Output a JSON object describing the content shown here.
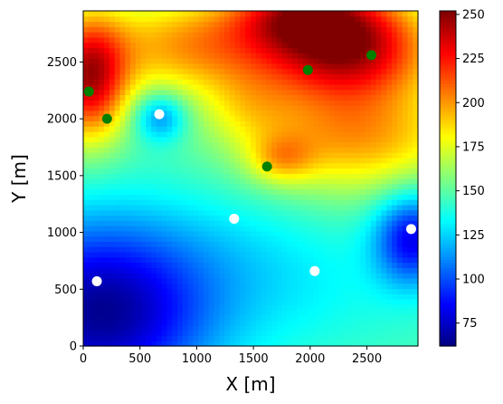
{
  "chart_data": {
    "type": "heatmap",
    "xlabel": "X [m]",
    "ylabel": "Y [m]",
    "xlim": [
      0,
      2950
    ],
    "ylim": [
      0,
      2950
    ],
    "x_ticks": [
      0,
      500,
      1000,
      1500,
      2000,
      2500
    ],
    "x_tick_labels": [
      "0",
      "500",
      "1000",
      "1500",
      "2000",
      "2500"
    ],
    "y_ticks": [
      0,
      500,
      1000,
      1500,
      2000,
      2500
    ],
    "y_tick_labels": [
      "0",
      "500",
      "1000",
      "1500",
      "2000",
      "2500"
    ],
    "colorbar": {
      "colormap": "jet",
      "range": [
        62,
        252
      ],
      "ticks": [
        75,
        100,
        125,
        150,
        175,
        200,
        225,
        250
      ],
      "tick_labels": [
        "75",
        "100",
        "125",
        "150",
        "175",
        "200",
        "225",
        "250"
      ]
    },
    "field": {
      "base_value": 148,
      "features": [
        {
          "x": 2350,
          "y": 2650,
          "sx": 520,
          "sy": 330,
          "amplitude": 92
        },
        {
          "x": 1900,
          "y": 2950,
          "sx": 420,
          "sy": 220,
          "amplitude": 55
        },
        {
          "x": 50,
          "y": 2350,
          "sx": 240,
          "sy": 380,
          "amplitude": 88
        },
        {
          "x": 1000,
          "y": 2650,
          "sx": 650,
          "sy": 300,
          "amplitude": 52
        },
        {
          "x": 2400,
          "y": 1850,
          "sx": 650,
          "sy": 350,
          "amplitude": 50
        },
        {
          "x": 1750,
          "y": 1650,
          "sx": 200,
          "sy": 150,
          "amplitude": 30
        },
        {
          "x": 1450,
          "y": 2100,
          "sx": 300,
          "sy": 250,
          "amplitude": 20
        },
        {
          "x": 680,
          "y": 2020,
          "sx": 160,
          "sy": 150,
          "amplitude": -38
        },
        {
          "x": 150,
          "y": 300,
          "sx": 700,
          "sy": 580,
          "amplitude": -82
        },
        {
          "x": 2900,
          "y": 950,
          "sx": 230,
          "sy": 280,
          "amplitude": -62
        },
        {
          "x": 2000,
          "y": 500,
          "sx": 800,
          "sy": 450,
          "amplitude": -12
        },
        {
          "x": 1400,
          "y": 900,
          "sx": 600,
          "sy": 400,
          "amplitude": -8
        }
      ]
    },
    "series": [
      {
        "marker": "green-dot",
        "color": "#008000",
        "points": [
          {
            "x": 50,
            "y": 2240
          },
          {
            "x": 210,
            "y": 2000
          },
          {
            "x": 1980,
            "y": 2430
          },
          {
            "x": 2540,
            "y": 2560
          },
          {
            "x": 1620,
            "y": 1580
          }
        ]
      },
      {
        "marker": "white-dot",
        "color": "#ffffff",
        "points": [
          {
            "x": 670,
            "y": 2040
          },
          {
            "x": 1330,
            "y": 1120
          },
          {
            "x": 2890,
            "y": 1030
          },
          {
            "x": 2040,
            "y": 660
          },
          {
            "x": 120,
            "y": 570
          }
        ]
      }
    ]
  }
}
